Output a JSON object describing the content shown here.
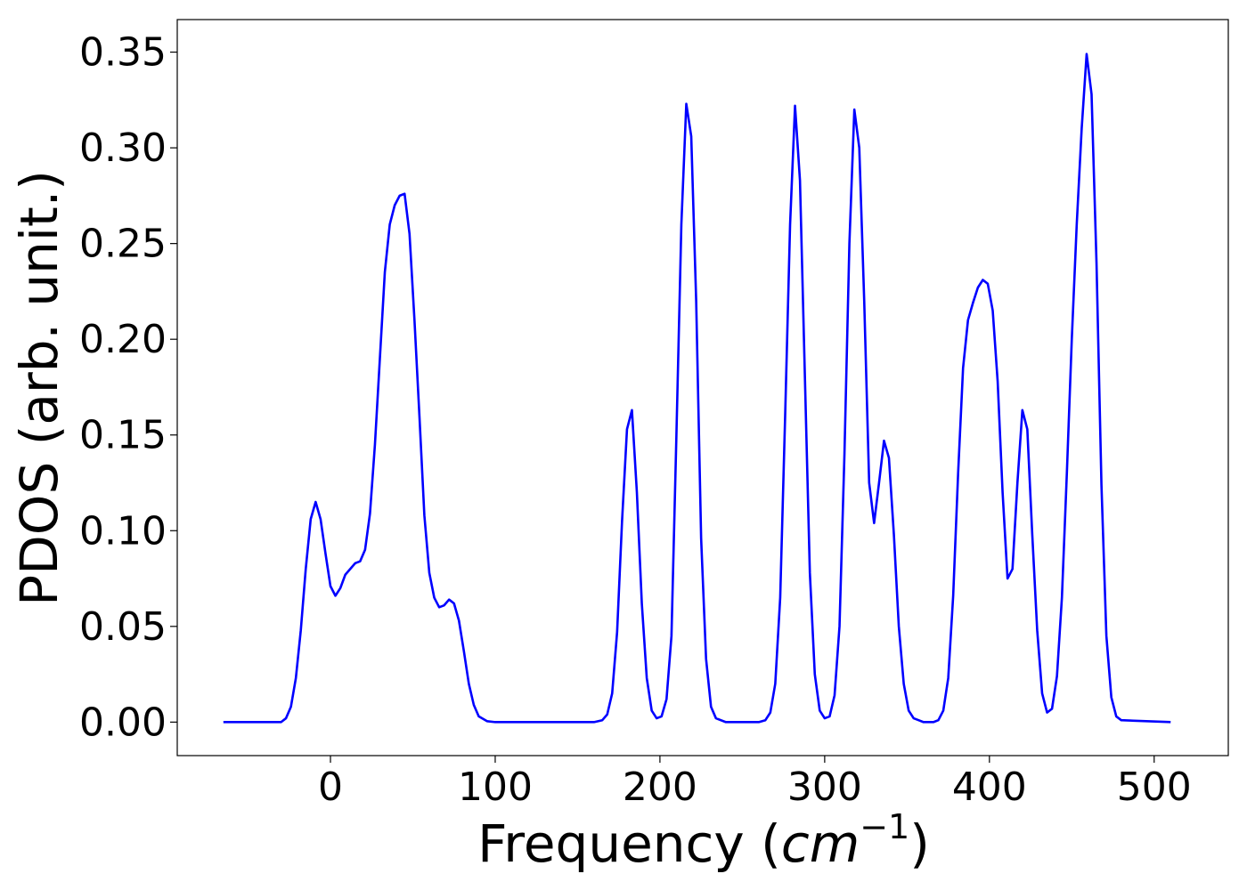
{
  "chart_data": {
    "type": "line",
    "xlabel": "Frequency",
    "xlabel_unit": "cm",
    "xlabel_unit_exponent": "−1",
    "ylabel": "PDOS (arb. unit.)",
    "xlim": [
      -93,
      545
    ],
    "ylim": [
      -0.0175,
      0.367
    ],
    "xticks": [
      0,
      100,
      200,
      300,
      400,
      500
    ],
    "xtick_labels": [
      "0",
      "100",
      "200",
      "300",
      "400",
      "500"
    ],
    "yticks": [
      0.0,
      0.05,
      0.1,
      0.15,
      0.2,
      0.25,
      0.3,
      0.35
    ],
    "ytick_labels": [
      "0.00",
      "0.05",
      "0.10",
      "0.15",
      "0.20",
      "0.25",
      "0.30",
      "0.35"
    ],
    "grid": false,
    "series": [
      {
        "color": "#0000ff",
        "x": [
          -65,
          -30,
          -27,
          -24,
          -21,
          -18,
          -15,
          -12,
          -9,
          -6,
          -3,
          0,
          3,
          6,
          9,
          15,
          18,
          21,
          24,
          27,
          30,
          33,
          36,
          39,
          42,
          45,
          48,
          51,
          54,
          57,
          60,
          63,
          66,
          69,
          72,
          75,
          78,
          81,
          84,
          87,
          90,
          95,
          100,
          160,
          165,
          168,
          171,
          174,
          177,
          180,
          183,
          186,
          189,
          192,
          195,
          198,
          201,
          204,
          207,
          210,
          213,
          216,
          219,
          222,
          225,
          228,
          231,
          234,
          240,
          260,
          264,
          267,
          270,
          273,
          276,
          279,
          282,
          285,
          288,
          291,
          294,
          297,
          300,
          303,
          306,
          309,
          312,
          315,
          318,
          321,
          324,
          327,
          330,
          333,
          336,
          339,
          342,
          345,
          348,
          351,
          354,
          357,
          360,
          366,
          369,
          372,
          375,
          378,
          381,
          384,
          387,
          390,
          393,
          396,
          399,
          402,
          405,
          408,
          411,
          414,
          417,
          420,
          423,
          426,
          429,
          432,
          435,
          438,
          441,
          444,
          447,
          450,
          453,
          456,
          459,
          462,
          465,
          468,
          471,
          474,
          477,
          480,
          510
        ],
        "y": [
          0.0,
          0.0,
          0.002,
          0.008,
          0.023,
          0.048,
          0.08,
          0.106,
          0.115,
          0.106,
          0.088,
          0.071,
          0.066,
          0.07,
          0.077,
          0.083,
          0.084,
          0.09,
          0.109,
          0.145,
          0.19,
          0.235,
          0.26,
          0.27,
          0.275,
          0.276,
          0.255,
          0.21,
          0.16,
          0.108,
          0.078,
          0.065,
          0.06,
          0.061,
          0.064,
          0.062,
          0.053,
          0.037,
          0.02,
          0.009,
          0.003,
          0.0005,
          0.0,
          0.0,
          0.001,
          0.004,
          0.015,
          0.047,
          0.105,
          0.153,
          0.163,
          0.12,
          0.062,
          0.023,
          0.006,
          0.002,
          0.003,
          0.012,
          0.045,
          0.15,
          0.26,
          0.323,
          0.306,
          0.22,
          0.096,
          0.033,
          0.008,
          0.002,
          0.0,
          0.0,
          0.001,
          0.005,
          0.02,
          0.065,
          0.16,
          0.26,
          0.322,
          0.283,
          0.18,
          0.078,
          0.025,
          0.006,
          0.002,
          0.003,
          0.014,
          0.05,
          0.14,
          0.25,
          0.32,
          0.3,
          0.22,
          0.125,
          0.104,
          0.125,
          0.147,
          0.138,
          0.098,
          0.05,
          0.02,
          0.006,
          0.002,
          0.001,
          0.0,
          0.0,
          0.001,
          0.006,
          0.023,
          0.066,
          0.13,
          0.185,
          0.21,
          0.219,
          0.227,
          0.231,
          0.229,
          0.215,
          0.178,
          0.12,
          0.075,
          0.08,
          0.125,
          0.163,
          0.153,
          0.098,
          0.048,
          0.015,
          0.005,
          0.007,
          0.024,
          0.065,
          0.13,
          0.2,
          0.26,
          0.31,
          0.349,
          0.328,
          0.24,
          0.124,
          0.045,
          0.013,
          0.003,
          0.001,
          0.0
        ]
      }
    ]
  }
}
